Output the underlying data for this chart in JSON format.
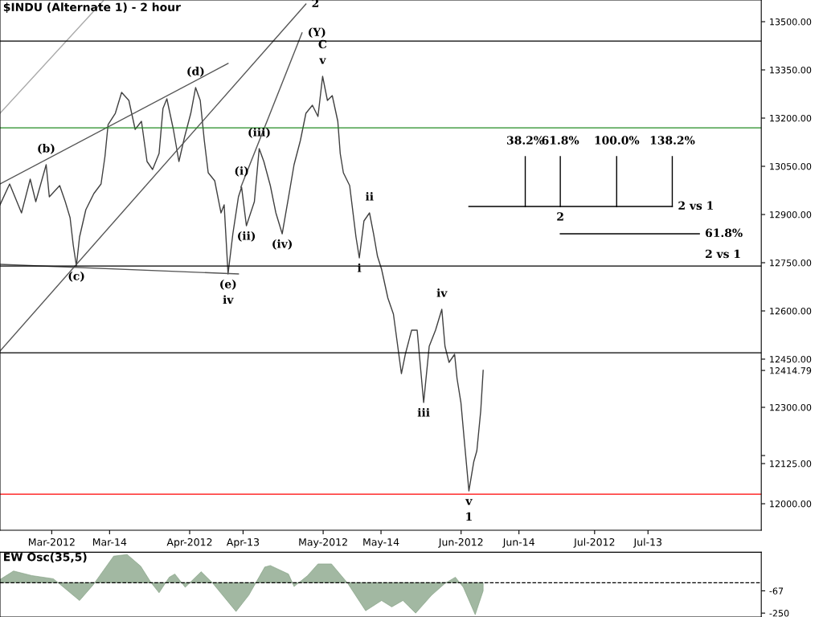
{
  "chart_data": [
    {
      "type": "line",
      "title": "$INDU (Alternate 1) - 2 hour",
      "xlim": [
        "2012-02-18T09:00",
        "2012-08-07T11:00"
      ],
      "xticks": [
        {
          "value": "2012-03-01",
          "label": "Mar-2012"
        },
        {
          "value": "2012-03-14",
          "label": "Mar-14"
        },
        {
          "value": "2012-04-01",
          "label": "Apr-2012"
        },
        {
          "value": "2012-04-13",
          "label": "Apr-13"
        },
        {
          "value": "2012-05-01",
          "label": "May-2012"
        },
        {
          "value": "2012-05-14",
          "label": "May-14"
        },
        {
          "value": "2012-06-01",
          "label": "Jun-2012"
        },
        {
          "value": "2012-06-14",
          "label": "Jun-14"
        },
        {
          "value": "2012-07-01",
          "label": "Jul-2012"
        },
        {
          "value": "2012-07-13",
          "label": "Jul-13"
        }
      ],
      "ylim": [
        11917.5,
        13567.5
      ],
      "yticks": [
        {
          "value": 12000,
          "label": "12000.00"
        },
        {
          "value": 12150,
          "label": null
        },
        {
          "value": 12300,
          "label": "12300.00"
        },
        {
          "value": 12450,
          "label": "12450.00"
        },
        {
          "value": 12600,
          "label": "12600.00"
        },
        {
          "value": 12750,
          "label": "12750.00"
        },
        {
          "value": 12900,
          "label": "12900.00"
        },
        {
          "value": 13050,
          "label": "13050.00"
        },
        {
          "value": 13200,
          "label": "13200.00"
        },
        {
          "value": 13350,
          "label": "13350.00"
        },
        {
          "value": 13500,
          "label": "13500.00"
        },
        {
          "value": 12414.79,
          "label": "12414.79"
        },
        {
          "value": 12125,
          "label": "12125.00"
        }
      ],
      "grid": false,
      "series": [
        {
          "color": "#404040",
          "x": [
            "2012-02-18T09:00",
            "2012-02-20T13:00",
            "2012-02-23T05:00",
            "2012-02-25T04:00",
            "2012-02-26T10:00",
            "2012-02-28T18:00",
            "2012-02-29T11:00",
            "2012-03-02T19:00",
            "2012-03-04T01:00",
            "2012-03-05T03:00",
            "2012-03-05T20:00",
            "2012-03-06T13:00",
            "2012-03-07T06:00",
            "2012-03-08T16:00",
            "2012-03-10T11:00",
            "2012-03-12T02:00",
            "2012-03-12T23:00",
            "2012-03-13T16:00",
            "2012-03-15T07:00",
            "2012-03-16T17:00",
            "2012-03-18T08:00",
            "2012-03-19T18:00",
            "2012-03-21T04:00",
            "2012-03-22T10:00",
            "2012-03-23T16:00",
            "2012-03-25T03:00",
            "2012-03-26T00:00",
            "2012-03-26T21:00",
            "2012-03-28T08:00",
            "2012-03-29T14:00",
            "2012-03-30T20:00",
            "2012-04-01T06:00",
            "2012-04-02T08:00",
            "2012-04-03T09:00",
            "2012-04-04T07:00",
            "2012-04-05T04:00",
            "2012-04-06T15:00",
            "2012-04-08T01:00",
            "2012-04-08T18:00",
            "2012-04-09T15:00",
            "2012-04-10T17:00",
            "2012-04-11T23:00",
            "2012-04-12T16:00",
            "2012-04-13T18:00",
            "2012-04-15T13:00",
            "2012-04-16T15:00",
            "2012-04-17T16:00",
            "2012-04-19T03:00",
            "2012-04-20T09:00",
            "2012-04-21T19:00",
            "2012-04-23T01:00",
            "2012-04-24T11:00",
            "2012-04-25T21:00",
            "2012-04-27T03:00",
            "2012-04-28T14:00",
            "2012-04-29T20:00",
            "2012-04-30T21:00",
            "2012-05-01T23:00",
            "2012-05-03T01:00",
            "2012-05-04T07:00",
            "2012-05-04T20:00",
            "2012-05-05T13:00",
            "2012-05-06T23:00",
            "2012-05-08T09:00",
            "2012-05-09T03:00",
            "2012-05-10T04:00",
            "2012-05-11T10:00",
            "2012-05-12T08:00",
            "2012-05-13T05:00",
            "2012-05-14T03:00",
            "2012-05-15T13:00",
            "2012-05-16T19:00",
            "2012-05-18T14:00",
            "2012-05-19T11:00",
            "2012-05-20T21:00",
            "2012-05-22T03:00",
            "2012-05-23T14:00",
            "2012-05-24T20:00",
            "2012-05-26T06:00",
            "2012-05-27T16:00",
            "2012-05-28T09:00",
            "2012-05-29T07:00",
            "2012-05-30T13:00",
            "2012-05-31T02:00",
            "2012-05-31T23:00",
            "2012-06-01T16:00",
            "2012-06-02T18:00",
            "2012-06-03T20:00",
            "2012-06-04T13:00",
            "2012-06-05T10:00",
            "2012-06-05T23:00"
          ],
          "values": [
            12930,
            12995,
            12905,
            13010,
            12940,
            13055,
            12955,
            12990,
            12940,
            12890,
            12805,
            12740,
            12830,
            12915,
            12965,
            12995,
            13080,
            13180,
            13215,
            13280,
            13255,
            13165,
            13190,
            13065,
            13040,
            13090,
            13230,
            13260,
            13165,
            13065,
            13140,
            13215,
            13295,
            13255,
            13130,
            13030,
            13005,
            12905,
            12930,
            12715,
            12840,
            12955,
            12985,
            12865,
            12940,
            13105,
            13065,
            12990,
            12905,
            12840,
            12940,
            13055,
            13130,
            13215,
            13240,
            13205,
            13330,
            13255,
            13270,
            13190,
            13090,
            13030,
            12990,
            12830,
            12765,
            12880,
            12905,
            12840,
            12770,
            12730,
            12640,
            12590,
            12405,
            12465,
            12540,
            12540,
            12315,
            12490,
            12540,
            12605,
            12490,
            12440,
            12465,
            12390,
            12315,
            12205,
            12040,
            12130,
            12165,
            12290,
            12415
          ]
        },
        {
          "color": "#555555",
          "x": [
            "2012-02-18T09:00",
            "2012-04-09T15:00"
          ],
          "values": [
            12995,
            13370
          ]
        },
        {
          "color": "#555555",
          "x": [
            "2012-02-18T09:00",
            "2012-04-27T03:00"
          ],
          "values": [
            12475,
            13555
          ]
        },
        {
          "color": "#555555",
          "x": [
            "2012-02-18T09:00",
            "2012-04-11T23:00"
          ],
          "values": [
            12745,
            12715
          ]
        },
        {
          "color": "#555555",
          "x": [
            "2012-04-12T12:00",
            "2012-04-26T06:00"
          ],
          "values": [
            12985,
            13465
          ]
        },
        {
          "color": "#aaaaaa",
          "x": [
            "2012-02-18T09:00",
            "2012-03-12T14:00"
          ],
          "values": [
            13215,
            13565
          ]
        },
        {
          "color": "#000000",
          "x": [
            "2012-06-02T18:00",
            "2012-07-18T11:00"
          ],
          "values": [
            12925,
            12925
          ]
        },
        {
          "color": "#000000",
          "x": [
            "2012-06-15T10:00",
            "2012-06-15T10:00"
          ],
          "values": [
            12925,
            13080
          ]
        },
        {
          "color": "#000000",
          "x": [
            "2012-06-23T07:00",
            "2012-06-23T07:00"
          ],
          "values": [
            12925,
            13080
          ]
        },
        {
          "color": "#000000",
          "x": [
            "2012-07-05T23:00",
            "2012-07-05T23:00"
          ],
          "values": [
            12925,
            13080
          ]
        },
        {
          "color": "#000000",
          "x": [
            "2012-07-18T11:00",
            "2012-07-18T11:00"
          ],
          "values": [
            12925,
            13080
          ]
        },
        {
          "color": "#000000",
          "x": [
            "2012-06-23T07:00",
            "2012-07-24T13:00"
          ],
          "values": [
            12840,
            12840
          ]
        }
      ],
      "ref_lines": [
        {
          "axis": "y",
          "value": 13440,
          "color": "#000000"
        },
        {
          "axis": "y",
          "value": 13170,
          "color": "#228b22"
        },
        {
          "axis": "y",
          "value": 12740,
          "color": "#000000"
        },
        {
          "axis": "y",
          "value": 12470,
          "color": "#000000"
        },
        {
          "axis": "y",
          "value": 12030,
          "color": "#ff0000"
        }
      ],
      "annotations": [
        {
          "text": "v",
          "x": "2012-04-30T21:00",
          "y": 13330
        },
        {
          "text": "C",
          "x": "2012-04-30T21:00",
          "y": 13330
        },
        {
          "text": "(Y)",
          "x": "2012-04-26T06:00",
          "y": 13465
        },
        {
          "text": "2",
          "x": "2012-04-27T03:00",
          "y": 13555
        },
        {
          "text": "(d)",
          "x": "2012-04-02T08:00",
          "y": 13295
        },
        {
          "text": "(b)",
          "x": "2012-02-28T18:00",
          "y": 13055
        },
        {
          "text": "(c)",
          "x": "2012-03-06T13:00",
          "y": 12740
        },
        {
          "text": "(e)",
          "x": "2012-04-09T15:00",
          "y": 12715
        },
        {
          "text": "iv",
          "x": "2012-04-09T15:00",
          "y": 12715
        },
        {
          "text": "(iii)",
          "x": "2012-04-16T15:00",
          "y": 13105
        },
        {
          "text": "(i)",
          "x": "2012-04-12T16:00",
          "y": 12985
        },
        {
          "text": "(ii)",
          "x": "2012-04-13T18:00",
          "y": 12865
        },
        {
          "text": "(iv)",
          "x": "2012-04-21T19:00",
          "y": 12840
        },
        {
          "text": "ii",
          "x": "2012-05-11T10:00",
          "y": 12905
        },
        {
          "text": "i",
          "x": "2012-05-09T03:00",
          "y": 12765
        },
        {
          "text": "iv",
          "x": "2012-05-27T16:00",
          "y": 12605
        },
        {
          "text": "iii",
          "x": "2012-05-23T14:00",
          "y": 12315
        },
        {
          "text": "v",
          "x": "2012-06-02T18:00",
          "y": 12040
        },
        {
          "text": "1",
          "x": "2012-06-02T18:00",
          "y": 12040
        },
        {
          "text": "2",
          "x": "2012-06-23T07:00",
          "y": 12925
        },
        {
          "text": "38.2%",
          "x": "2012-06-15T10:00",
          "y": 13080
        },
        {
          "text": "61.8%",
          "x": "2012-06-23T07:00",
          "y": 13080
        },
        {
          "text": "100.0%",
          "x": "2012-07-05T23:00",
          "y": 13080
        },
        {
          "text": "138.2%",
          "x": "2012-07-18T11:00",
          "y": 13080
        },
        {
          "text": "2 vs 1",
          "x": "2012-07-18T11:00",
          "y": 12925
        },
        {
          "text": "61.8%",
          "x": "2012-07-24T13:00",
          "y": 12840
        },
        {
          "text": "2 vs 1",
          "x": "2012-07-24T13:00",
          "y": 12840
        }
      ]
    },
    {
      "type": "area",
      "title": "EW Osc(35,5)",
      "tick_labels": "y",
      "xlim": [
        "2012-02-18T09:00",
        "2012-08-07T11:00"
      ],
      "ylim": [
        -282,
        250
      ],
      "yticks": [
        {
          "value": -67,
          "label": "-67"
        },
        -250
      ],
      "ref_lines": [
        {
          "axis": "y",
          "value": 0,
          "color": "#000000",
          "line_style": "dashed"
        }
      ],
      "series": [
        {
          "color": "#7a9a7a",
          "x": [
            "2012-02-18T09:00",
            "2012-02-21T10:00",
            "2012-02-25T13:00",
            "2012-03-01T09:00",
            "2012-03-07T06:00",
            "2012-03-10T07:00",
            "2012-03-14T22:00",
            "2012-03-17T23:00",
            "2012-03-21T00:00",
            "2012-03-23T08:00",
            "2012-03-25T03:00",
            "2012-03-27T10:00",
            "2012-03-28T16:00",
            "2012-03-31T00:00",
            "2012-04-03T14:00",
            "2012-04-06T02:00",
            "2012-04-11T10:00",
            "2012-04-14T07:00",
            "2012-04-17T21:00",
            "2012-04-19T03:00",
            "2012-04-23T05:00",
            "2012-04-24T11:00",
            "2012-04-27T12:00",
            "2012-04-29T20:00",
            "2012-05-02T21:00",
            "2012-05-06T10:00",
            "2012-05-10T13:00",
            "2012-05-14T03:00",
            "2012-05-16T10:00",
            "2012-05-18T22:00",
            "2012-05-21T19:00",
            "2012-05-25T09:00",
            "2012-05-28T09:00",
            "2012-05-30T17:00",
            "2012-06-01T12:00",
            "2012-06-04T04:00",
            "2012-06-05T23:00"
          ],
          "values": [
            26,
            96,
            58,
            32,
            -147,
            -19,
            218,
            231,
            135,
            0,
            -83,
            45,
            71,
            -38,
            90,
            0,
            -237,
            -103,
            128,
            141,
            71,
            -32,
            58,
            154,
            154,
            0,
            -231,
            -147,
            -199,
            -147,
            -250,
            -103,
            -6,
            45,
            -38,
            -263,
            -67
          ]
        }
      ]
    }
  ]
}
